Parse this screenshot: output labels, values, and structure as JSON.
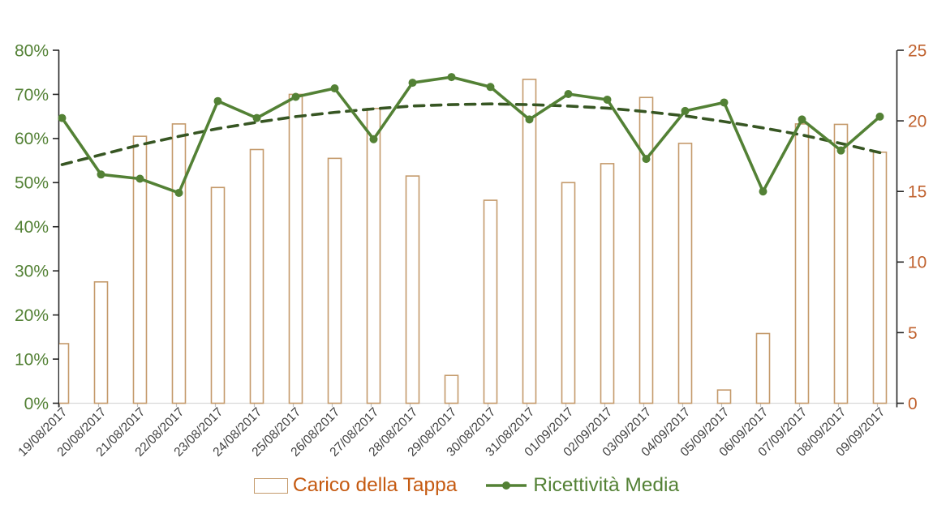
{
  "chart_data": {
    "type": "combo",
    "title": "",
    "categories": [
      "19/08/2017",
      "20/08/2017",
      "21/08/2017",
      "22/08/2017",
      "23/08/2017",
      "24/08/2017",
      "25/08/2017",
      "26/08/2017",
      "27/08/2017",
      "28/08/2017",
      "29/08/2017",
      "30/08/2017",
      "31/08/2017",
      "01/09/2017",
      "02/09/2017",
      "03/09/2017",
      "04/09/2017",
      "05/09/2017",
      "06/09/2017",
      "07/09/2017",
      "08/09/2017",
      "09/09/2017"
    ],
    "series": [
      {
        "name": "Carico della Tappa",
        "type": "bar",
        "axis": "left",
        "unit": "%",
        "color": "#c49a6b",
        "fill": "#ffffff",
        "values": [
          13.5,
          27.5,
          60.5,
          63.3,
          48.9,
          57.5,
          70.0,
          55.5,
          66.8,
          51.5,
          6.3,
          46.0,
          73.4,
          50.0,
          54.3,
          69.3,
          58.9,
          3.0,
          15.8,
          63.3,
          63.2,
          56.9
        ]
      },
      {
        "name": "Ricettività Media",
        "type": "line",
        "axis": "right",
        "color": "#538135",
        "values": [
          20.2,
          16.2,
          15.9,
          14.9,
          21.4,
          20.2,
          21.7,
          22.3,
          18.7,
          22.7,
          23.1,
          22.4,
          20.1,
          21.9,
          21.5,
          17.3,
          20.7,
          21.3,
          15.0,
          20.1,
          17.9,
          20.3
        ]
      },
      {
        "name": "trendline",
        "type": "dashed-line",
        "axis": "right",
        "color": "#375623",
        "values": [
          16.9,
          17.6,
          18.3,
          18.9,
          19.45,
          19.9,
          20.3,
          20.6,
          20.85,
          21.05,
          21.15,
          21.2,
          21.15,
          21.05,
          20.9,
          20.65,
          20.35,
          19.95,
          19.5,
          19.0,
          18.4,
          17.75
        ]
      }
    ],
    "left_axis": {
      "min": 0,
      "max": 80,
      "unit": "%",
      "tick_labels": [
        "0%",
        "10%",
        "20%",
        "30%",
        "40%",
        "50%",
        "60%",
        "70%",
        "80%"
      ],
      "label_color": "#538135"
    },
    "right_axis": {
      "min": 0,
      "max": 25,
      "tick_labels": [
        "0",
        "5",
        "10",
        "15",
        "20",
        "25"
      ],
      "label_color": "#c0622f"
    },
    "x_axis": {
      "label_color": "#404040",
      "label_rotation_deg": -45,
      "axis_line_color": "#d9d9d9",
      "tick_color": "#bfbfbf"
    },
    "grid": "off",
    "legend_position": "bottom"
  },
  "legend": {
    "bar_label": "Carico della Tappa",
    "line_label": "Ricettività Media"
  },
  "colors": {
    "bar_border": "#c49a6b",
    "line_green": "#538135",
    "trend_green": "#375623",
    "axis_dark": "#262626"
  }
}
